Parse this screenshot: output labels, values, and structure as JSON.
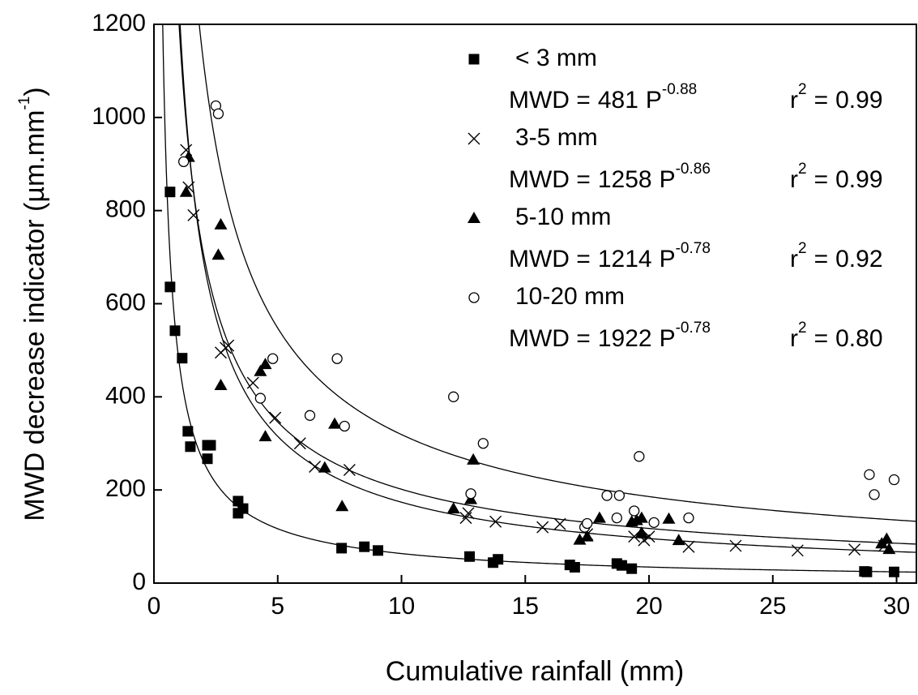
{
  "chart_data": {
    "type": "scatter",
    "x_label": "Cumulative rainfall (mm)",
    "y_label": {
      "text": "MWD decrease indicator (µm.mm",
      "power": "-1",
      "end": ")"
    },
    "fit_label": {
      "response": "MWD =",
      "variable": "P",
      "r": "r",
      "r_power": "2",
      "equals": "="
    },
    "xlim": [
      0,
      30.8
    ],
    "ylim": [
      0,
      1200
    ],
    "xticks": [
      0,
      5,
      10,
      15,
      20,
      25,
      30
    ],
    "yticks": [
      0,
      200,
      400,
      600,
      800,
      1000,
      1200
    ],
    "series": [
      {
        "name": "< 3 mm",
        "marker": "square",
        "color": "#000000",
        "fit": {
          "coefficient": 481,
          "exponent": -0.88,
          "r2": 0.99
        },
        "x": [
          0.65,
          0.65,
          0.85,
          1.14,
          1.37,
          1.47,
          2.16,
          2.29,
          2.16,
          3.4,
          3.4,
          3.6,
          7.58,
          8.5,
          9.05,
          12.75,
          13.7,
          13.9,
          16.8,
          17.0,
          18.7,
          18.9,
          19.3,
          28.7,
          28.8,
          29.9
        ],
        "values": [
          840,
          636,
          542,
          483,
          326,
          293,
          296,
          296,
          267,
          176,
          150,
          160,
          75,
          78,
          70,
          57,
          44,
          51,
          39,
          34,
          42,
          38,
          31,
          25,
          24,
          24
        ]
      },
      {
        "name": "3-5 mm",
        "marker": "x",
        "color": "#000000",
        "fit": {
          "coefficient": 1258,
          "exponent": -0.86,
          "r2": 0.99
        },
        "x": [
          1.3,
          1.4,
          1.6,
          2.7,
          2.9,
          3.0,
          4.0,
          4.9,
          5.9,
          6.5,
          7.9,
          12.6,
          12.7,
          13.8,
          15.7,
          16.4,
          17.5,
          19.4,
          19.8,
          20.0,
          21.6,
          23.5,
          26.0,
          28.3,
          29.5
        ],
        "values": [
          930,
          850,
          790,
          495,
          505,
          510,
          430,
          355,
          300,
          250,
          243,
          140,
          150,
          132,
          120,
          127,
          105,
          100,
          92,
          100,
          78,
          80,
          70,
          72,
          80
        ]
      },
      {
        "name": "5-10 mm",
        "marker": "triangle",
        "color": "#000000",
        "fit": {
          "coefficient": 1214,
          "exponent": -0.78,
          "r2": 0.92
        },
        "x": [
          1.3,
          1.4,
          2.7,
          2.6,
          2.7,
          4.3,
          4.5,
          4.5,
          6.9,
          7.3,
          7.6,
          12.1,
          12.9,
          12.8,
          17.2,
          17.5,
          18.0,
          19.3,
          19.5,
          19.7,
          19.7,
          20.8,
          21.2,
          29.4,
          29.6,
          29.7
        ],
        "values": [
          840,
          915,
          770,
          705,
          425,
          455,
          470,
          315,
          248,
          342,
          165,
          160,
          265,
          180,
          93,
          100,
          140,
          132,
          135,
          140,
          108,
          138,
          92,
          85,
          95,
          73
        ]
      },
      {
        "name": "10-20 mm",
        "marker": "circle",
        "color": "#000000",
        "fit": {
          "coefficient": 1922,
          "exponent": -0.78,
          "r2": {
            "value": 0.8,
            "label": "0.80"
          }
        },
        "x": [
          1.2,
          2.5,
          2.6,
          4.3,
          4.8,
          6.3,
          7.4,
          7.7,
          12.1,
          12.8,
          13.3,
          17.4,
          17.5,
          18.3,
          18.7,
          18.8,
          19.4,
          19.6,
          20.2,
          21.6,
          28.9,
          29.1,
          29.9
        ],
        "values": [
          905,
          1025,
          1008,
          397,
          482,
          360,
          482,
          337,
          400,
          192,
          300,
          120,
          128,
          188,
          140,
          188,
          155,
          272,
          130,
          140,
          233,
          190,
          222
        ]
      }
    ]
  }
}
